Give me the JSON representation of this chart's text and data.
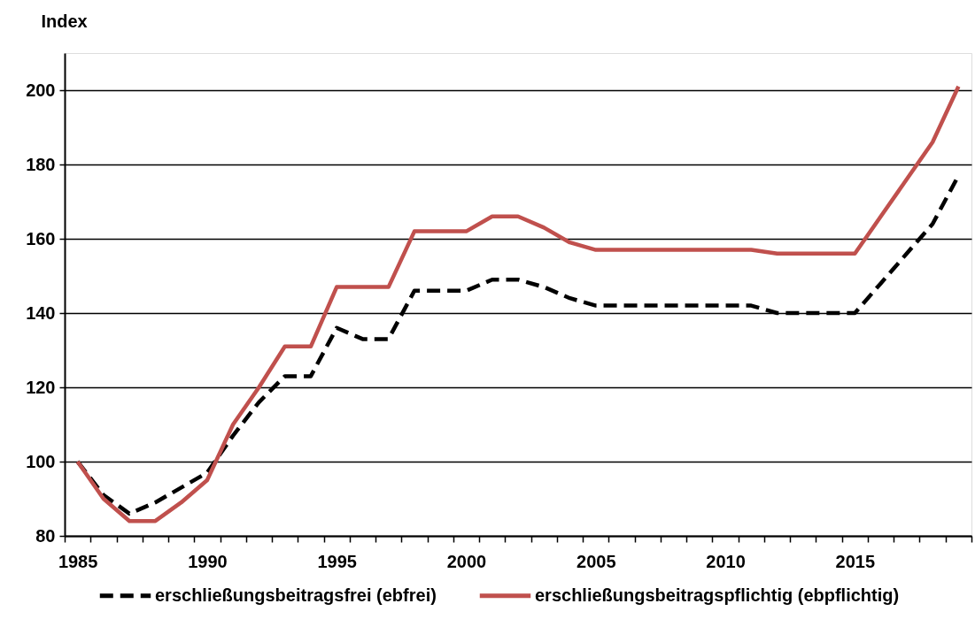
{
  "chart_data": {
    "type": "line",
    "ylabel": "Index",
    "x": [
      1985,
      1986,
      1987,
      1988,
      1989,
      1990,
      1991,
      1992,
      1993,
      1994,
      1995,
      1996,
      1997,
      1998,
      1999,
      2000,
      2001,
      2002,
      2003,
      2004,
      2005,
      2006,
      2007,
      2008,
      2009,
      2010,
      2011,
      2012,
      2013,
      2014,
      2015,
      2016,
      2017,
      2018,
      2019
    ],
    "xlim": [
      1984.5,
      2019.5
    ],
    "xticks": [
      {
        "value": 1984.5,
        "label": null
      },
      1985,
      {
        "value": 1985.5,
        "label": null
      },
      {
        "value": 1986.5,
        "label": null
      },
      {
        "value": 1987.5,
        "label": null
      },
      {
        "value": 1988.5,
        "label": null
      },
      {
        "value": 1989.5,
        "label": null
      },
      1990,
      {
        "value": 1990.5,
        "label": null
      },
      {
        "value": 1991.5,
        "label": null
      },
      {
        "value": 1992.5,
        "label": null
      },
      {
        "value": 1993.5,
        "label": null
      },
      {
        "value": 1994.5,
        "label": null
      },
      1995,
      {
        "value": 1995.5,
        "label": null
      },
      {
        "value": 1996.5,
        "label": null
      },
      {
        "value": 1997.5,
        "label": null
      },
      {
        "value": 1998.5,
        "label": null
      },
      {
        "value": 1999.5,
        "label": null
      },
      2000,
      {
        "value": 2000.5,
        "label": null
      },
      {
        "value": 2001.5,
        "label": null
      },
      {
        "value": 2002.5,
        "label": null
      },
      {
        "value": 2003.5,
        "label": null
      },
      {
        "value": 2004.5,
        "label": null
      },
      2005,
      {
        "value": 2005.5,
        "label": null
      },
      {
        "value": 2006.5,
        "label": null
      },
      {
        "value": 2007.5,
        "label": null
      },
      {
        "value": 2008.5,
        "label": null
      },
      {
        "value": 2009.5,
        "label": null
      },
      2010,
      {
        "value": 2010.5,
        "label": null
      },
      {
        "value": 2011.5,
        "label": null
      },
      {
        "value": 2012.5,
        "label": null
      },
      {
        "value": 2013.5,
        "label": null
      },
      {
        "value": 2014.5,
        "label": null
      },
      2015,
      {
        "value": 2015.5,
        "label": null
      },
      {
        "value": 2016.5,
        "label": null
      },
      {
        "value": 2017.5,
        "label": null
      },
      {
        "value": 2018.5,
        "label": null
      },
      {
        "value": 2019.5,
        "label": null
      }
    ],
    "ylim": [
      80,
      210
    ],
    "yticks": [
      80,
      100,
      120,
      140,
      160,
      180,
      200
    ],
    "grid": "y",
    "legend": "bottom",
    "marker": "none",
    "series": [
      {
        "name": "erschließungsbeitragsfrei (ebfrei)",
        "color": "#000000",
        "line_style": "dashed",
        "values": [
          100,
          91,
          86,
          89,
          93,
          97,
          107,
          116,
          123,
          123,
          136,
          133,
          133,
          146,
          146,
          146,
          149,
          149,
          147,
          144,
          142,
          142,
          142,
          142,
          142,
          142,
          142,
          140,
          140,
          140,
          140,
          148,
          156,
          164,
          177
        ]
      },
      {
        "name": "erschließungsbeitragspflichtig (ebpflichtig)",
        "color": "#c0504d",
        "line_style": "solid",
        "values": [
          100,
          90,
          84,
          84,
          89,
          95,
          110,
          120,
          131,
          131,
          147,
          147,
          147,
          162,
          162,
          162,
          166,
          166,
          163,
          159,
          157,
          157,
          157,
          157,
          157,
          157,
          157,
          156,
          156,
          156,
          156,
          166,
          176,
          186,
          201
        ]
      }
    ]
  }
}
